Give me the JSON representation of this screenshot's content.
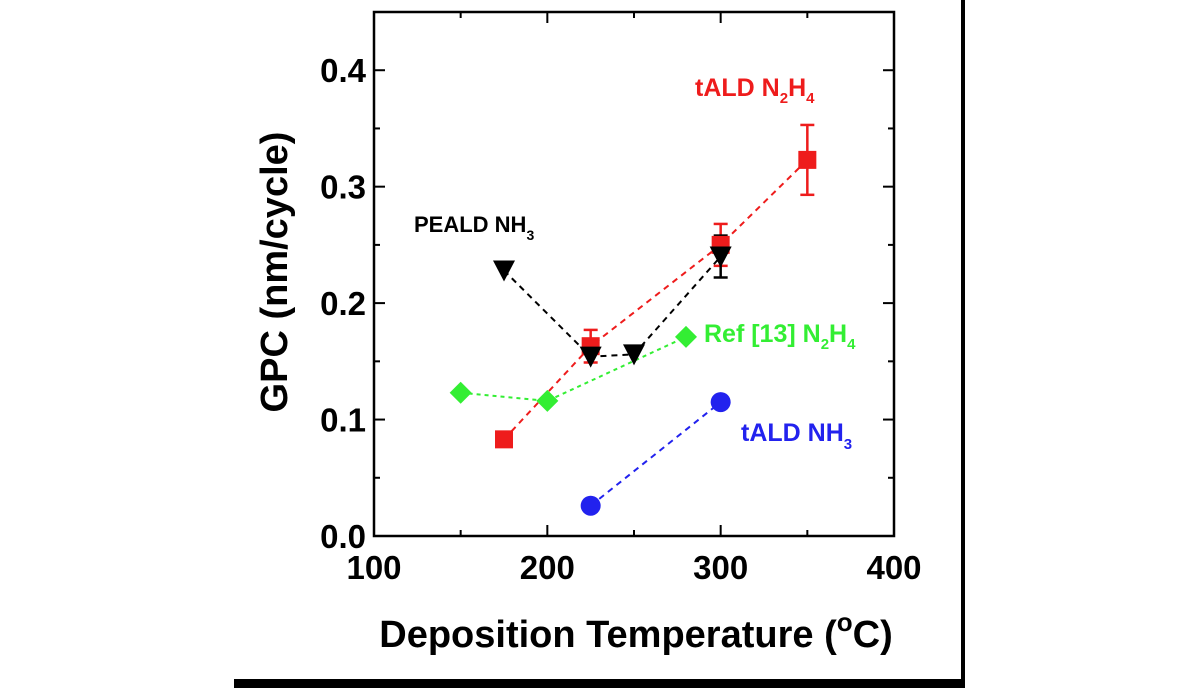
{
  "chart_data": {
    "type": "scatter",
    "title": "",
    "xlabel": "Deposition Temperature (",
    "xlabel_sup": "o",
    "xlabel_end": "C)",
    "ylabel": "GPC (nm/cycle)",
    "xlim": [
      100,
      400
    ],
    "ylim": [
      0.0,
      0.45
    ],
    "xticks": [
      100,
      200,
      300,
      400
    ],
    "xtick_labels": [
      "100",
      "200",
      "300",
      "400"
    ],
    "yticks": [
      0.0,
      0.1,
      0.2,
      0.3,
      0.4
    ],
    "ytick_labels": [
      "0.0",
      "0.1",
      "0.2",
      "0.3",
      "0.4"
    ],
    "grid": false,
    "legend": "inline annotations",
    "series": [
      {
        "name": "tALD N2H4",
        "label_main": "tALD N",
        "label_sub1": "2",
        "label_mid": "H",
        "label_sub2": "4",
        "color": "#ee1c1c",
        "marker": "square",
        "line": "dashed",
        "x": [
          175,
          225,
          300,
          350
        ],
        "y": [
          0.083,
          0.163,
          0.25,
          0.323
        ],
        "err": [
          0,
          0.014,
          0.018,
          0.03
        ]
      },
      {
        "name": "PEALD NH3",
        "label_main": "PEALD NH",
        "label_sub1": "3",
        "color": "#000000",
        "marker": "triangle-down",
        "line": "dashed",
        "x": [
          175,
          225,
          250,
          300
        ],
        "y": [
          0.228,
          0.154,
          0.156,
          0.24
        ],
        "err": [
          0,
          0,
          0,
          0.018
        ]
      },
      {
        "name": "Ref [13] N2H4",
        "label_main": "Ref [13] N",
        "label_sub1": "2",
        "label_mid": "H",
        "label_sub2": "4",
        "color": "#33ee33",
        "marker": "diamond",
        "line": "dotted",
        "x": [
          150,
          200,
          280
        ],
        "y": [
          0.123,
          0.116,
          0.171
        ],
        "err": [
          0,
          0,
          0
        ]
      },
      {
        "name": "tALD NH3",
        "label_main": "tALD NH",
        "label_sub1": "3",
        "color": "#2222ee",
        "marker": "circle",
        "line": "dashed",
        "x": [
          225,
          300
        ],
        "y": [
          0.026,
          0.115
        ],
        "err": [
          0,
          0
        ]
      }
    ]
  }
}
